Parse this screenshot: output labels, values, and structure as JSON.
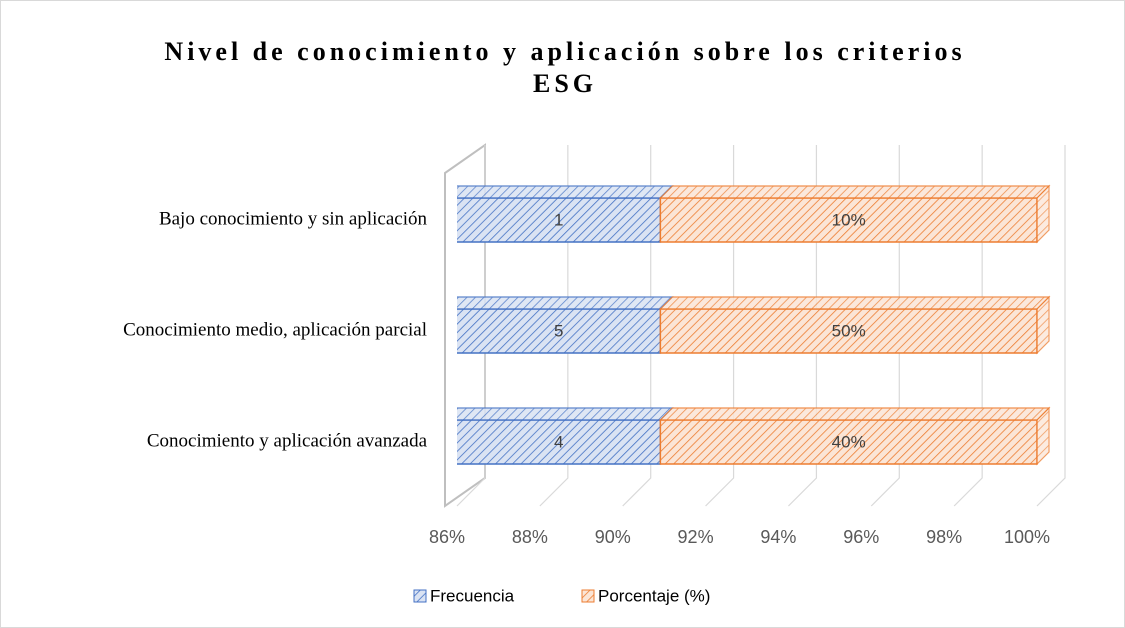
{
  "chart_data": {
    "type": "bar",
    "orientation": "horizontal",
    "stacked": "percent",
    "title": "Nivel de conocimiento y aplicación sobre los criterios ESG",
    "categories": [
      "Bajo conocimiento y sin aplicación",
      "Conocimiento medio, aplicación parcial",
      "Conocimiento y aplicación avanzada"
    ],
    "series": [
      {
        "name": "Frecuencia",
        "color": "#4472c4",
        "values": [
          1,
          5,
          4
        ]
      },
      {
        "name": "Porcentaje (%)",
        "color": "#ed7d31",
        "values": [
          0.1,
          0.5,
          0.4
        ],
        "value_labels": [
          "10%",
          "50%",
          "40%"
        ]
      }
    ],
    "xlim": [
      0.86,
      1.0
    ],
    "xticks": [
      {
        "value": 0.86,
        "label": "86%"
      },
      {
        "value": 0.88,
        "label": "88%"
      },
      {
        "value": 0.9,
        "label": "90%"
      },
      {
        "value": 0.92,
        "label": "92%"
      },
      {
        "value": 0.94,
        "label": "94%"
      },
      {
        "value": 0.96,
        "label": "96%"
      },
      {
        "value": 0.98,
        "label": "98%"
      },
      {
        "value": 1.0,
        "label": "100%"
      }
    ],
    "grid": true,
    "legend": "bottom"
  }
}
